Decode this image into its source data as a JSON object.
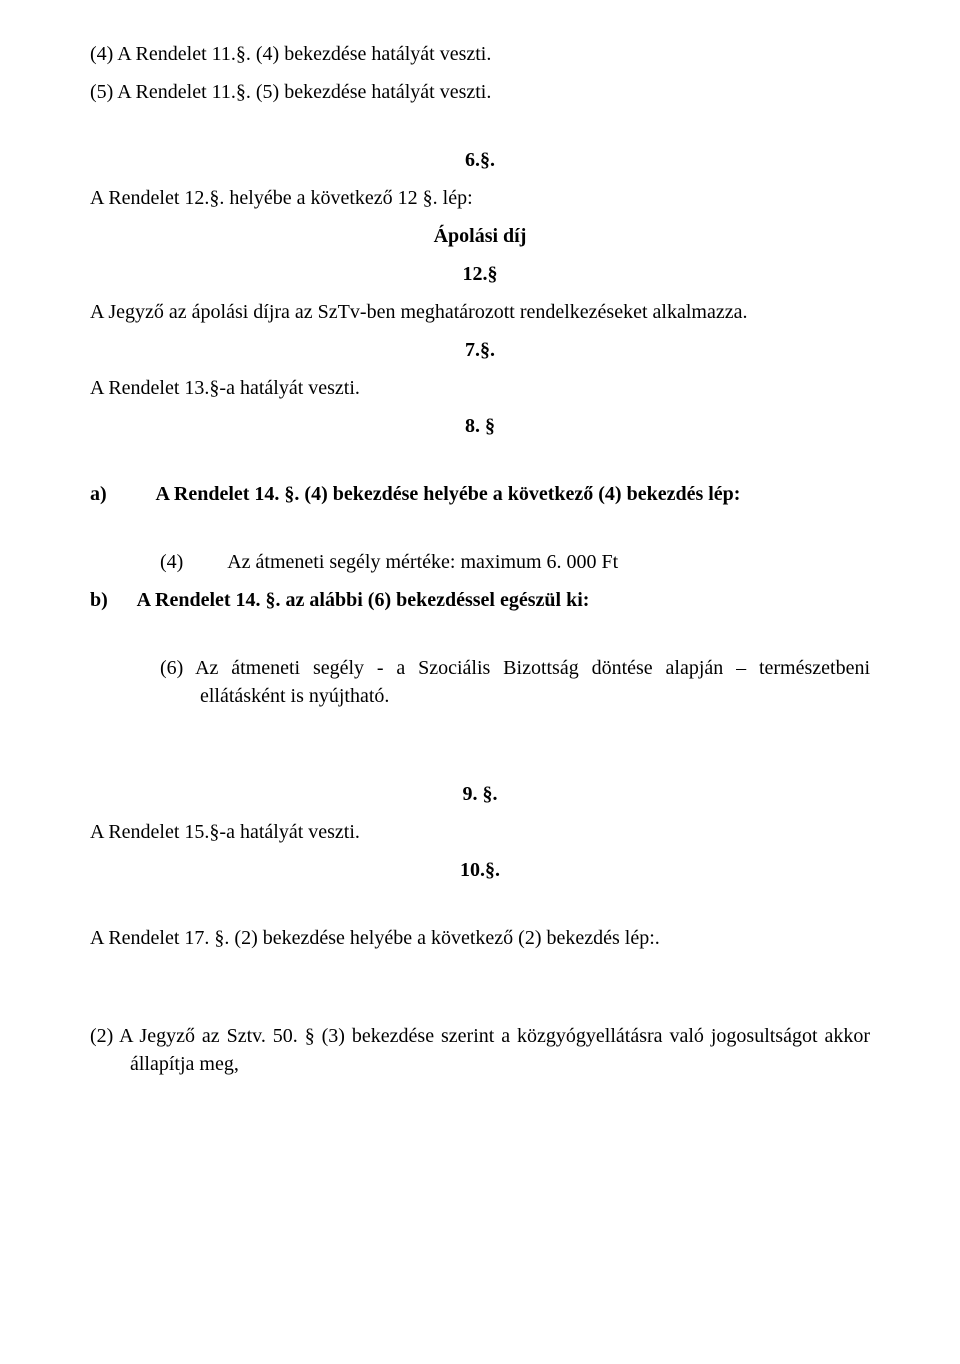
{
  "p1": "(4)   A Rendelet 11.§. (4) bekezdése hatályát veszti.",
  "p2": "(5)   A Rendelet 11.§. (5) bekezdése hatályát veszti.",
  "s6": "6.§.",
  "p3": "A Rendelet 12.§. helyébe a következő 12 §. lép:",
  "heading_apolasi": "Ápolási díj",
  "heading_12": "12.§",
  "p4": "A Jegyző az ápolási díjra az SzTv-ben meghatározott rendelkezéseket alkalmazza.",
  "s7": "7.§.",
  "p5": "A Rendelet 13.§-a hatályát veszti.",
  "s8": "8. §",
  "p6": "a)          A Rendelet 14. §. (4) bekezdése helyébe a következő (4) bekezdés lép:",
  "p7": "(4)         Az átmeneti segély mértéke: maximum 6. 000 Ft",
  "p8": "b)      A Rendelet 14. §. az alábbi (6) bekezdéssel egészül ki:",
  "p9": "(6) Az átmeneti segély - a Szociális Bizottság döntése alapján – természetbeni ellátásként is nyújtható.",
  "s9": "9. §.",
  "p10": "A Rendelet 15.§-a hatályát veszti.",
  "s10": "10.§.",
  "p11": "A Rendelet 17. §. (2) bekezdése helyébe a következő (2) bekezdés lép:.",
  "p12": "(2) A Jegyző az Sztv. 50. § (3) bekezdése szerint a közgyógyellátásra való jogosultságot akkor állapítja meg,"
}
